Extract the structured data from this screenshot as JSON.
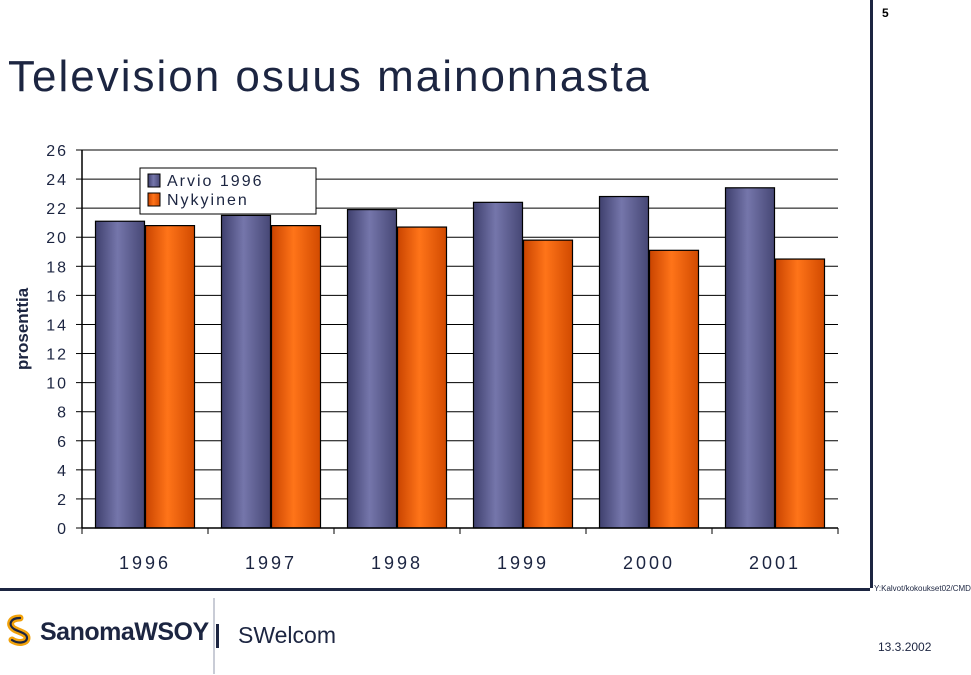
{
  "page_number": "5",
  "title": "Television osuus mainonnasta",
  "chart_data": {
    "type": "bar",
    "categories": [
      "1996",
      "1997",
      "1998",
      "1999",
      "2000",
      "2001"
    ],
    "series": [
      {
        "name": "Arvio 1996",
        "color": "#5e5f94",
        "values": [
          21.1,
          21.5,
          21.9,
          22.4,
          22.8,
          23.4
        ]
      },
      {
        "name": "Nykyinen",
        "color": "#f25e0a",
        "values": [
          20.8,
          20.8,
          20.7,
          19.8,
          19.1,
          18.5
        ]
      }
    ],
    "ylabel": "prosenttia",
    "xlabel": "",
    "ylim": [
      0,
      26
    ],
    "yticks": [
      "0",
      "2",
      "4",
      "6",
      "8",
      "10",
      "12",
      "14",
      "16",
      "18",
      "20",
      "22",
      "24",
      "26"
    ],
    "grid": true,
    "legend_position": "top-left"
  },
  "footer": {
    "path": "Y:Kalvot/kokoukset02/CMD",
    "logo_text": "SanomaWSOY",
    "brand": "SWelcom",
    "date": "13.3.2002"
  }
}
